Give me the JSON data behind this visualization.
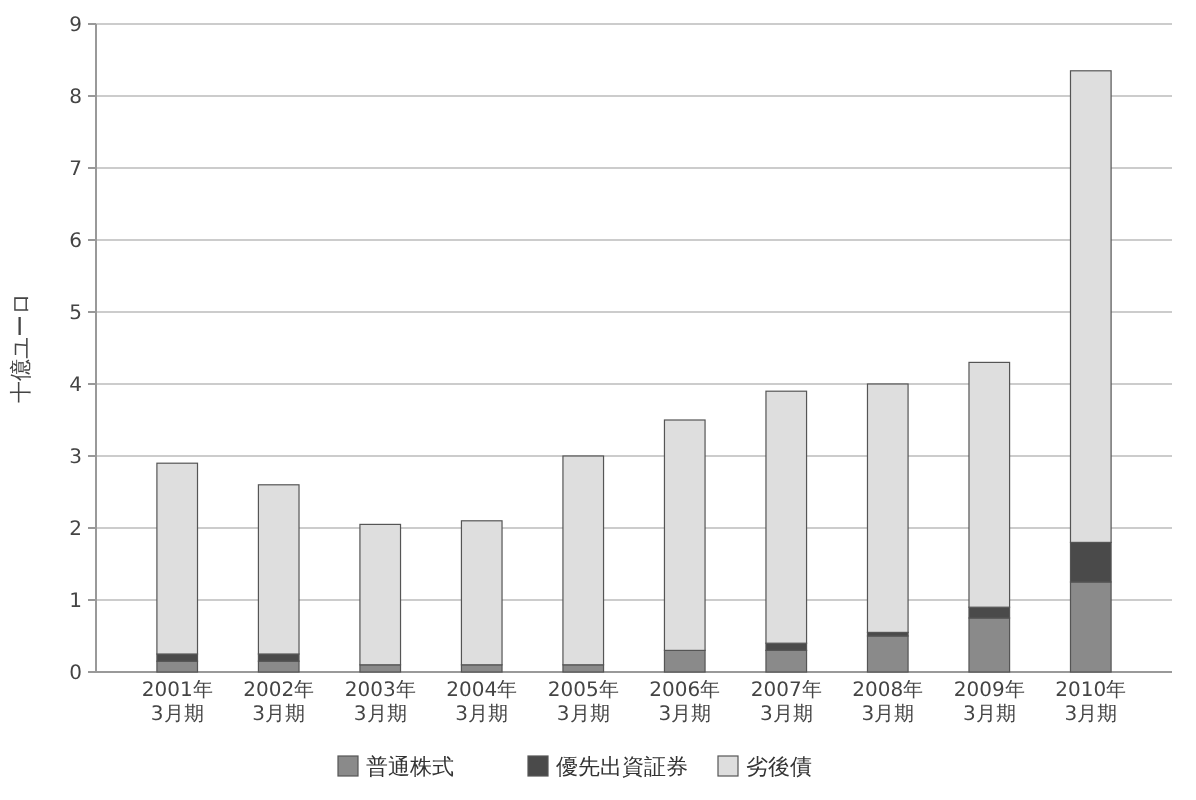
{
  "chart_data": {
    "type": "bar",
    "stacked": true,
    "ylabel": "十億ユーロ",
    "categories": [
      "2001年3月期",
      "2002年3月期",
      "2003年3月期",
      "2004年3月期",
      "2005年3月期",
      "2006年3月期",
      "2007年3月期",
      "2008年3月期",
      "2009年3月期",
      "2010年3月期"
    ],
    "series": [
      {
        "name": "普通株式",
        "color": "#8a8a8a",
        "values": [
          0.15,
          0.15,
          0.1,
          0.1,
          0.1,
          0.3,
          0.3,
          0.5,
          0.75,
          1.25
        ]
      },
      {
        "name": "優先出資証券",
        "color": "#4a4a4a",
        "values": [
          0.1,
          0.1,
          0,
          0,
          0,
          0,
          0.1,
          0.05,
          0.15,
          0.55
        ]
      },
      {
        "name": "劣後債",
        "color": "#dedede",
        "values": [
          2.65,
          2.35,
          1.95,
          2.0,
          2.9,
          3.2,
          3.5,
          3.45,
          3.4,
          6.55
        ]
      }
    ],
    "ylim": [
      0,
      9
    ],
    "yticks": [
      0,
      1,
      2,
      3,
      4,
      5,
      6,
      7,
      8,
      9
    ],
    "grid": "y",
    "legend": "bottom"
  }
}
